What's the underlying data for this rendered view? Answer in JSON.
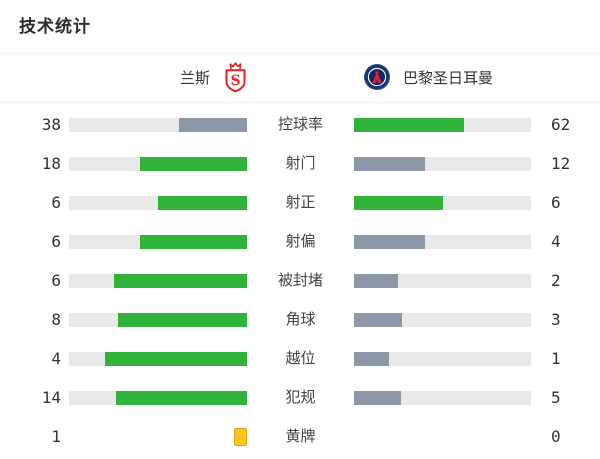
{
  "page": {
    "title": "技术统计"
  },
  "teams": {
    "home": {
      "name": "兰斯",
      "badge_icon": "reims-crest-icon"
    },
    "away": {
      "name": "巴黎圣日耳曼",
      "badge_icon": "psg-crest-icon"
    }
  },
  "colors": {
    "green": "#31b23a",
    "gray": "#8c98a8",
    "track": "#e9e9e9",
    "yellow_card": "#fcc41d",
    "badge_red": "#e8272c",
    "badge_navy": "#17356e"
  },
  "chart_data": {
    "type": "bar",
    "title": "技术统计",
    "orientation": "horizontal-paired",
    "teams": [
      "兰斯",
      "巴黎圣日耳曼"
    ],
    "legend_position": "top",
    "rows": [
      {
        "label": "控球率",
        "home": 38,
        "away": 62,
        "home_style": "gray",
        "away_style": "green"
      },
      {
        "label": "射门",
        "home": 18,
        "away": 12,
        "home_style": "green",
        "away_style": "gray"
      },
      {
        "label": "射正",
        "home": 6,
        "away": 6,
        "home_style": "green",
        "away_style": "green"
      },
      {
        "label": "射偏",
        "home": 6,
        "away": 4,
        "home_style": "green",
        "away_style": "gray"
      },
      {
        "label": "被封堵",
        "home": 6,
        "away": 2,
        "home_style": "green",
        "away_style": "gray"
      },
      {
        "label": "角球",
        "home": 8,
        "away": 3,
        "home_style": "green",
        "away_style": "gray"
      },
      {
        "label": "越位",
        "home": 4,
        "away": 1,
        "home_style": "green",
        "away_style": "gray"
      },
      {
        "label": "犯规",
        "home": 14,
        "away": 5,
        "home_style": "green",
        "away_style": "gray"
      },
      {
        "label": "黄牌",
        "home": 1,
        "away": 0,
        "home_style": "card",
        "away_style": "none"
      }
    ]
  }
}
